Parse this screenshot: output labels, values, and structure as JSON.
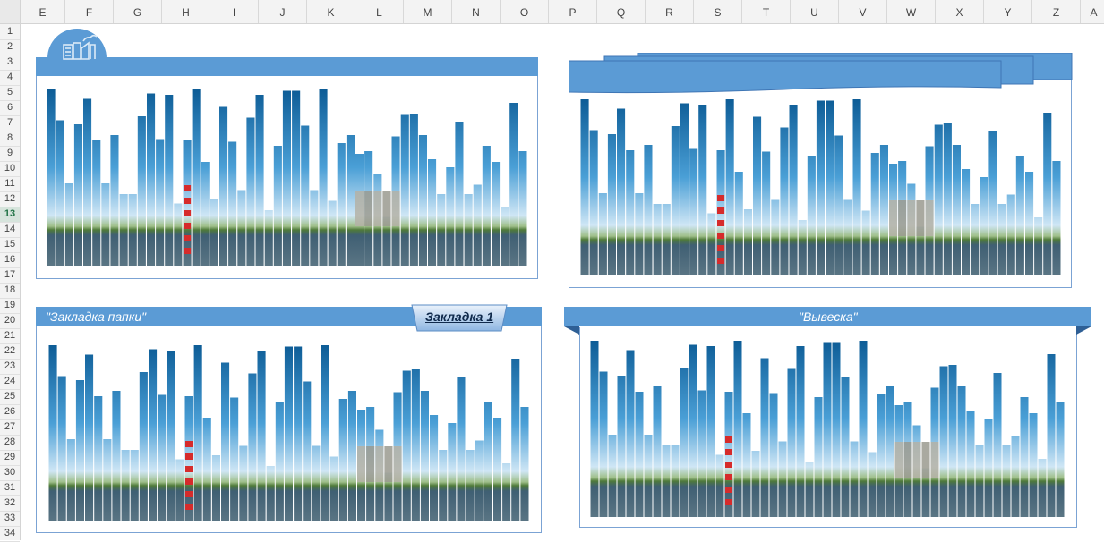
{
  "spreadsheet": {
    "columns": [
      "E",
      "F",
      "G",
      "H",
      "I",
      "J",
      "K",
      "L",
      "M",
      "N",
      "O",
      "P",
      "Q",
      "R",
      "S",
      "T",
      "U",
      "V",
      "W",
      "X",
      "Y",
      "Z",
      "A"
    ],
    "rows": [
      "1",
      "2",
      "3",
      "4",
      "5",
      "6",
      "7",
      "8",
      "9",
      "10",
      "11",
      "12",
      "13",
      "14",
      "15",
      "16",
      "17",
      "18",
      "19",
      "20",
      "21",
      "22",
      "23",
      "24",
      "25",
      "26",
      "27",
      "28",
      "29",
      "30",
      "31",
      "32",
      "33",
      "34"
    ],
    "selected_row": "13"
  },
  "panels": {
    "bottom_left": {
      "title": "\"Закладка папки\"",
      "tab_label": "Закладка 1"
    },
    "bottom_right": {
      "title": "\"Вывеска\""
    }
  },
  "colors": {
    "header_blue": "#5b9bd5",
    "bar_dark": "#0b5a94",
    "bar_light": "#4a9fd6",
    "sky": "#cfe6f5",
    "water": "#3f5f73",
    "chimney_red": "#d62b2b"
  },
  "chart_data": {
    "type": "bar",
    "values": [
      0.98,
      0.75,
      0.28,
      0.72,
      0.91,
      0.6,
      0.28,
      0.64,
      0.2,
      0.2,
      0.78,
      0.95,
      0.61,
      0.94,
      0.13,
      0.6,
      0.98,
      0.44,
      0.16,
      0.85,
      0.59,
      0.23,
      0.77,
      0.94,
      0.08,
      0.56,
      0.97,
      0.97,
      0.71,
      0.23,
      0.98,
      0.15,
      0.58,
      0.64,
      0.5,
      0.52,
      0.35,
      0.03,
      0.63,
      0.79,
      0.8,
      0.64,
      0.46,
      0.2,
      0.4,
      0.74,
      0.2,
      0.27,
      0.56,
      0.44,
      0.1,
      0.88,
      0.52
    ]
  }
}
